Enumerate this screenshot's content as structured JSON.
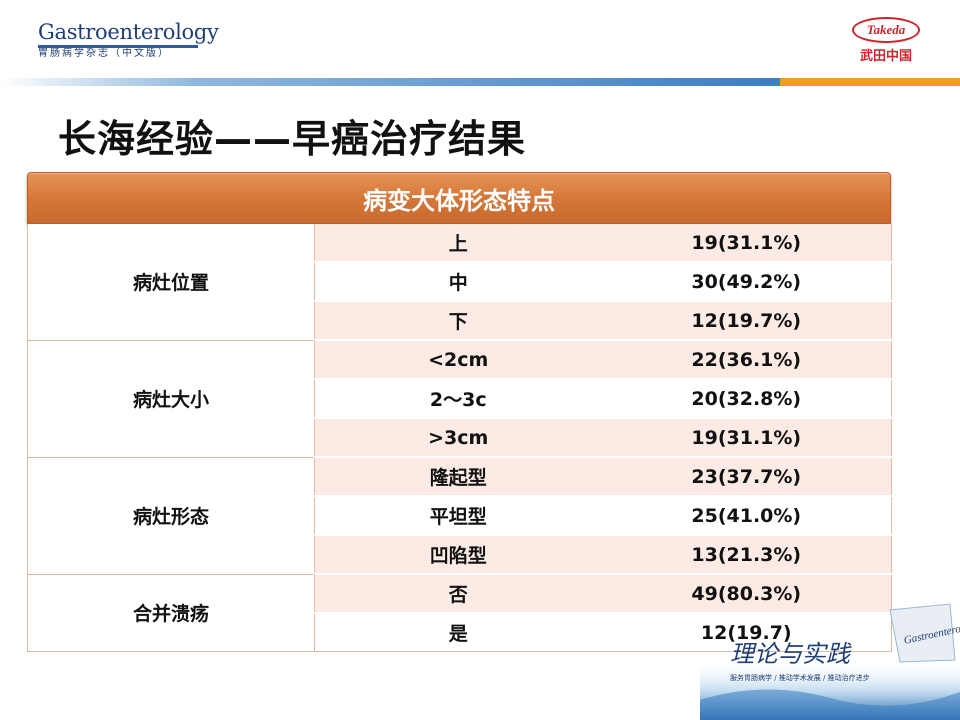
{
  "header": {
    "journal_title": "Gastroenterology",
    "journal_subtitle": "胃肠病学杂志（中文版）",
    "sponsor_logo_text": "Takeda",
    "sponsor_cn": "武田中国"
  },
  "slide": {
    "title": "长海经验——早癌治疗结果"
  },
  "table": {
    "header": "病变大体形态特点",
    "groups": [
      {
        "label": "病灶位置",
        "rows": [
          {
            "sub": "上",
            "value": "19(31.1%)"
          },
          {
            "sub": "中",
            "value": "30(49.2%)"
          },
          {
            "sub": "下",
            "value": "12(19.7%)"
          }
        ]
      },
      {
        "label": "病灶大小",
        "rows": [
          {
            "sub": "<2cm",
            "value": "22(36.1%)"
          },
          {
            "sub": "2～3c",
            "value": "20(32.8%)"
          },
          {
            "sub": ">3cm",
            "value": "19(31.1%)"
          }
        ]
      },
      {
        "label": "病灶形态",
        "rows": [
          {
            "sub": "隆起型",
            "value": "23(37.7%)"
          },
          {
            "sub": "平坦型",
            "value": "25(41.0%)"
          },
          {
            "sub": "凹陷型",
            "value": "13(21.3%)"
          }
        ]
      },
      {
        "label": "合并溃疡",
        "rows": [
          {
            "sub": "否",
            "value": "49(80.3%)"
          },
          {
            "sub": "是",
            "value": "12(19.7)"
          }
        ]
      }
    ]
  },
  "decoration": {
    "brand_text": "Gastroenterology",
    "slogan": "理论与实践",
    "tagline": "服务胃肠病学 / 推动学术发展 / 推动治疗进步"
  },
  "colors": {
    "accent_orange": "#d5783a",
    "row_tint": "#fbebe4",
    "brand_blue": "#1f3e73",
    "takeda_red": "#d2232a"
  }
}
